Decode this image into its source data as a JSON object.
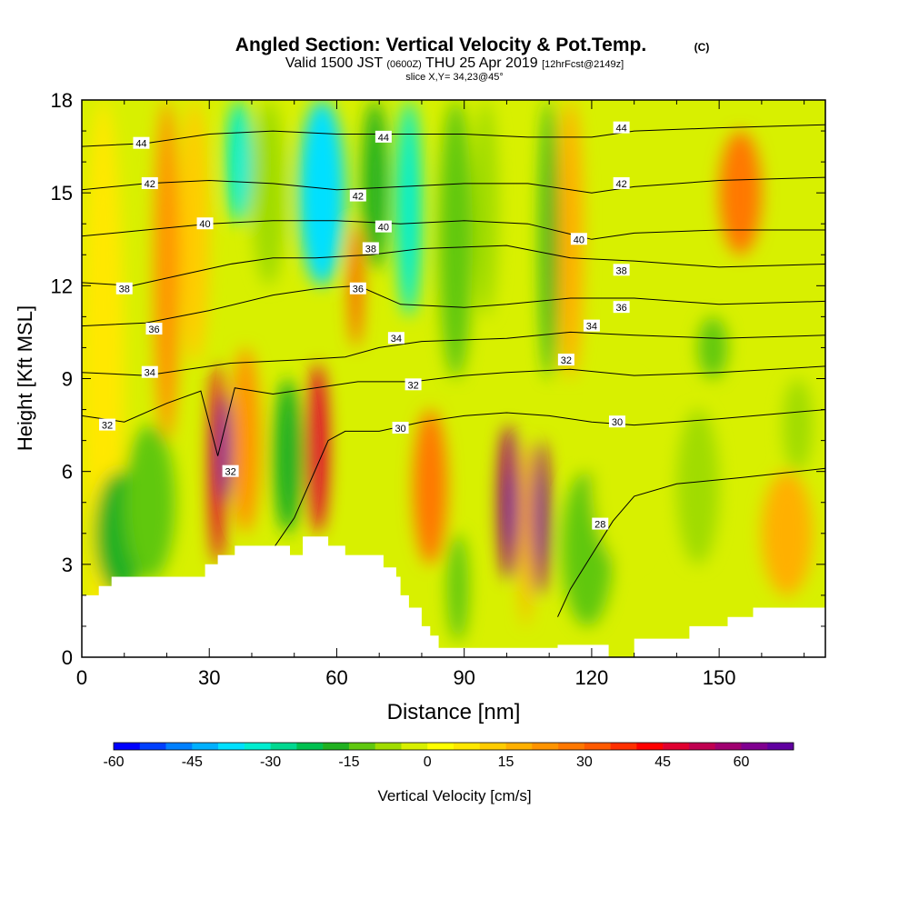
{
  "chart_data": {
    "type": "heatmap",
    "title": {
      "main": "Angled Section: Vertical Velocity & Pot.Temp.",
      "main_suffix": "(C)",
      "line2_a": "Valid 1500 JST",
      "line2_b": "(0600Z)",
      "line2_c": "THU 25 Apr 2019",
      "line2_d": "[12hrFcst@2149z]",
      "line3": "slice X,Y= 34,23@45°"
    },
    "xlabel": "Distance [nm]",
    "ylabel": "Height [Kft MSL]",
    "xlim": [
      0,
      175
    ],
    "ylim": [
      0,
      18
    ],
    "x_ticks": [
      0,
      30,
      60,
      90,
      120,
      150
    ],
    "y_ticks": [
      0,
      3,
      6,
      9,
      12,
      15,
      18
    ],
    "x_tick_labels": [
      "0",
      "30",
      "60",
      "90",
      "120",
      "150"
    ],
    "y_tick_labels": [
      "0",
      "3",
      "6",
      "9",
      "12",
      "15",
      "18"
    ],
    "colorbar": {
      "label": "Vertical Velocity [cm/s]",
      "min": -60,
      "max": 70,
      "step": 5,
      "tick_values": [
        -60,
        -45,
        -30,
        -15,
        0,
        15,
        30,
        45,
        60
      ],
      "tick_labels": [
        "-60",
        "-45",
        "-30",
        "-15",
        "0",
        "15",
        "30",
        "45",
        "60"
      ],
      "colors": [
        "#0000ff",
        "#0040ff",
        "#0080ff",
        "#00b0ff",
        "#00e0ff",
        "#00eed0",
        "#00d890",
        "#00c050",
        "#20b020",
        "#60c810",
        "#a0dc00",
        "#d8f000",
        "#ffff00",
        "#ffe800",
        "#ffcc00",
        "#ffb000",
        "#ff9400",
        "#ff7800",
        "#ff5a00",
        "#ff3000",
        "#ff0000",
        "#e00030",
        "#c00050",
        "#a00070",
        "#800090",
        "#6000a0"
      ]
    },
    "velocity_cells": [
      {
        "x0": 0,
        "x1": 10,
        "y0": 0,
        "y1": 18,
        "v": 5
      },
      {
        "x0": 3,
        "x1": 15,
        "y0": 2,
        "y1": 6,
        "v": -20
      },
      {
        "x0": 10,
        "x1": 22,
        "y0": 2.5,
        "y1": 7.5,
        "v": -15
      },
      {
        "x0": 17,
        "x1": 23,
        "y0": 7,
        "y1": 18,
        "v": 20
      },
      {
        "x0": 23,
        "x1": 30,
        "y0": 9.5,
        "y1": 18,
        "v": 10
      },
      {
        "x0": 30,
        "x1": 34,
        "y0": 3,
        "y1": 9.5,
        "v": 45
      },
      {
        "x0": 32,
        "x1": 35,
        "y0": 5,
        "y1": 8.5,
        "v": 65
      },
      {
        "x0": 35,
        "x1": 42,
        "y0": 4,
        "y1": 10,
        "v": 20
      },
      {
        "x0": 34,
        "x1": 40,
        "y0": 14,
        "y1": 18,
        "v": -35
      },
      {
        "x0": 45,
        "x1": 52,
        "y0": 4,
        "y1": 9,
        "v": -20
      },
      {
        "x0": 40,
        "x1": 48,
        "y0": 12,
        "y1": 18,
        "v": -10
      },
      {
        "x0": 53,
        "x1": 58,
        "y0": 4,
        "y1": 9.5,
        "v": 45
      },
      {
        "x0": 51,
        "x1": 62,
        "y0": 12,
        "y1": 18,
        "v": -40
      },
      {
        "x0": 63,
        "x1": 66,
        "y0": 10,
        "y1": 14,
        "v": 30
      },
      {
        "x0": 66,
        "x1": 72,
        "y0": 12.5,
        "y1": 18,
        "v": -20
      },
      {
        "x0": 74,
        "x1": 80,
        "y0": 11,
        "y1": 18,
        "v": -35
      },
      {
        "x0": 78,
        "x1": 86,
        "y0": 3,
        "y1": 8,
        "v": 25
      },
      {
        "x0": 86,
        "x1": 91,
        "y0": 0.5,
        "y1": 4,
        "v": -15
      },
      {
        "x0": 84,
        "x1": 92,
        "y0": 9,
        "y1": 18,
        "v": -15
      },
      {
        "x0": 92,
        "x1": 98,
        "y0": 11,
        "y1": 18,
        "v": -10
      },
      {
        "x0": 98,
        "x1": 103,
        "y0": 2.5,
        "y1": 7.5,
        "v": 55
      },
      {
        "x0": 100,
        "x1": 102,
        "y0": 3.5,
        "y1": 6,
        "v": 70
      },
      {
        "x0": 103,
        "x1": 106,
        "y0": 1,
        "y1": 7,
        "v": 15
      },
      {
        "x0": 106,
        "x1": 110,
        "y0": 2,
        "y1": 7,
        "v": 55
      },
      {
        "x0": 107,
        "x1": 109,
        "y0": 3,
        "y1": 6,
        "v": 65
      },
      {
        "x0": 108,
        "x1": 112,
        "y0": 9,
        "y1": 18,
        "v": -20
      },
      {
        "x0": 113,
        "x1": 125,
        "y0": 1,
        "y1": 6,
        "v": -15
      },
      {
        "x0": 112,
        "x1": 118,
        "y0": 9,
        "y1": 18,
        "v": 15
      },
      {
        "x0": 120,
        "x1": 135,
        "y0": 3,
        "y1": 9,
        "v": -5
      },
      {
        "x0": 140,
        "x1": 150,
        "y0": 3,
        "y1": 8,
        "v": -10
      },
      {
        "x0": 145,
        "x1": 152,
        "y0": 9,
        "y1": 11,
        "v": -15
      },
      {
        "x0": 150,
        "x1": 160,
        "y0": 13,
        "y1": 17,
        "v": 25
      },
      {
        "x0": 160,
        "x1": 172,
        "y0": 2,
        "y1": 6,
        "v": 15
      },
      {
        "x0": 165,
        "x1": 172,
        "y0": 6,
        "y1": 9,
        "v": -10
      }
    ],
    "terrain": [
      [
        0,
        2
      ],
      [
        4,
        2
      ],
      [
        4,
        2.3
      ],
      [
        7,
        2.3
      ],
      [
        7,
        2.6
      ],
      [
        29,
        2.6
      ],
      [
        29,
        3
      ],
      [
        32,
        3
      ],
      [
        32,
        3.3
      ],
      [
        36,
        3.3
      ],
      [
        36,
        3.6
      ],
      [
        49,
        3.6
      ],
      [
        49,
        3.3
      ],
      [
        52,
        3.3
      ],
      [
        52,
        3.9
      ],
      [
        58,
        3.9
      ],
      [
        58,
        3.6
      ],
      [
        62,
        3.6
      ],
      [
        62,
        3.3
      ],
      [
        71,
        3.3
      ],
      [
        71,
        2.9
      ],
      [
        74,
        2.9
      ],
      [
        74,
        2.6
      ],
      [
        75,
        2.6
      ],
      [
        75,
        2
      ],
      [
        77,
        2
      ],
      [
        77,
        1.6
      ],
      [
        80,
        1.6
      ],
      [
        80,
        1
      ],
      [
        82,
        1
      ],
      [
        82,
        0.7
      ],
      [
        84,
        0.7
      ],
      [
        84,
        0.3
      ],
      [
        112,
        0.3
      ],
      [
        112,
        0.4
      ],
      [
        124,
        0.4
      ],
      [
        124,
        0
      ],
      [
        130,
        0
      ],
      [
        130,
        0.6
      ],
      [
        143,
        0.6
      ],
      [
        143,
        1
      ],
      [
        152,
        1
      ],
      [
        152,
        1.3
      ],
      [
        158,
        1.3
      ],
      [
        158,
        1.6
      ],
      [
        163,
        1.6
      ],
      [
        163,
        1.6
      ],
      [
        175,
        1.6
      ]
    ],
    "isentropes": [
      {
        "label": "28",
        "points": [
          [
            112,
            1.3
          ],
          [
            115,
            2.2
          ],
          [
            120,
            3.3
          ],
          [
            125,
            4.4
          ],
          [
            130,
            5.2
          ],
          [
            140,
            5.6
          ],
          [
            155,
            5.8
          ],
          [
            175,
            6.1
          ]
        ],
        "label_at": [
          122,
          4.3
        ]
      },
      {
        "label": "30",
        "points": [
          [
            40,
            2.5
          ],
          [
            50,
            4.5
          ],
          [
            58,
            7
          ],
          [
            62,
            7.3
          ],
          [
            70,
            7.3
          ],
          [
            80,
            7.6
          ],
          [
            90,
            7.8
          ],
          [
            100,
            7.9
          ],
          [
            110,
            7.8
          ],
          [
            120,
            7.6
          ],
          [
            130,
            7.5
          ],
          [
            150,
            7.7
          ],
          [
            175,
            8
          ]
        ],
        "label_at": [
          75,
          7.4
        ]
      },
      {
        "label": "32",
        "points": [
          [
            0,
            7.8
          ],
          [
            10,
            7.6
          ],
          [
            20,
            8.2
          ],
          [
            28,
            8.6
          ],
          [
            32,
            6.5
          ],
          [
            36,
            8.7
          ],
          [
            45,
            8.5
          ],
          [
            55,
            8.7
          ],
          [
            65,
            8.9
          ],
          [
            78,
            8.9
          ],
          [
            90,
            9.1
          ],
          [
            100,
            9.2
          ],
          [
            115,
            9.3
          ],
          [
            130,
            9.1
          ],
          [
            150,
            9.2
          ],
          [
            175,
            9.4
          ]
        ],
        "label_at": [
          6,
          7.5
        ]
      },
      {
        "label": "34",
        "points": [
          [
            0,
            9.2
          ],
          [
            15,
            9.1
          ],
          [
            25,
            9.3
          ],
          [
            35,
            9.5
          ],
          [
            50,
            9.6
          ],
          [
            62,
            9.7
          ],
          [
            70,
            10
          ],
          [
            80,
            10.2
          ],
          [
            100,
            10.3
          ],
          [
            115,
            10.5
          ],
          [
            130,
            10.4
          ],
          [
            150,
            10.3
          ],
          [
            175,
            10.4
          ]
        ],
        "label_at": [
          16,
          9.2
        ]
      },
      {
        "label": "36",
        "points": [
          [
            0,
            10.7
          ],
          [
            15,
            10.8
          ],
          [
            30,
            11.2
          ],
          [
            45,
            11.7
          ],
          [
            55,
            11.9
          ],
          [
            65,
            12
          ],
          [
            75,
            11.4
          ],
          [
            90,
            11.3
          ],
          [
            100,
            11.4
          ],
          [
            115,
            11.6
          ],
          [
            130,
            11.6
          ],
          [
            150,
            11.4
          ],
          [
            175,
            11.5
          ]
        ],
        "label_at": [
          17,
          10.6
        ]
      },
      {
        "label": "38",
        "points": [
          [
            0,
            12.1
          ],
          [
            12,
            12
          ],
          [
            25,
            12.4
          ],
          [
            35,
            12.7
          ],
          [
            45,
            12.9
          ],
          [
            55,
            12.9
          ],
          [
            68,
            13
          ],
          [
            80,
            13.2
          ],
          [
            100,
            13.3
          ],
          [
            115,
            12.9
          ],
          [
            130,
            12.8
          ],
          [
            150,
            12.6
          ],
          [
            175,
            12.7
          ]
        ],
        "label_at": [
          10,
          11.9
        ]
      },
      {
        "label": "40",
        "points": [
          [
            0,
            13.6
          ],
          [
            15,
            13.8
          ],
          [
            30,
            14
          ],
          [
            45,
            14.1
          ],
          [
            60,
            14.1
          ],
          [
            75,
            14
          ],
          [
            90,
            14.1
          ],
          [
            105,
            14
          ],
          [
            120,
            13.5
          ],
          [
            130,
            13.7
          ],
          [
            150,
            13.8
          ],
          [
            175,
            13.8
          ]
        ],
        "label_at": [
          29,
          14.0
        ]
      },
      {
        "label": "42",
        "points": [
          [
            0,
            15.1
          ],
          [
            15,
            15.3
          ],
          [
            30,
            15.4
          ],
          [
            45,
            15.3
          ],
          [
            60,
            15.1
          ],
          [
            75,
            15.2
          ],
          [
            90,
            15.3
          ],
          [
            105,
            15.3
          ],
          [
            120,
            15
          ],
          [
            130,
            15.2
          ],
          [
            150,
            15.4
          ],
          [
            175,
            15.5
          ]
        ],
        "label_at": [
          16,
          15.3
        ]
      },
      {
        "label": "44",
        "points": [
          [
            0,
            16.5
          ],
          [
            15,
            16.6
          ],
          [
            30,
            16.9
          ],
          [
            45,
            17
          ],
          [
            60,
            16.9
          ],
          [
            75,
            16.9
          ],
          [
            90,
            16.9
          ],
          [
            105,
            16.8
          ],
          [
            120,
            16.8
          ],
          [
            130,
            17
          ],
          [
            150,
            17.1
          ],
          [
            175,
            17.2
          ]
        ],
        "label_at": [
          14,
          16.6
        ]
      }
    ],
    "isentrope_extra_labels": [
      {
        "label": "44",
        "at": [
          71,
          16.8
        ]
      },
      {
        "label": "44",
        "at": [
          127,
          17.1
        ]
      },
      {
        "label": "42",
        "at": [
          65,
          14.9
        ]
      },
      {
        "label": "42",
        "at": [
          127,
          15.3
        ]
      },
      {
        "label": "40",
        "at": [
          71,
          13.9
        ]
      },
      {
        "label": "40",
        "at": [
          117,
          13.5
        ]
      },
      {
        "label": "38",
        "at": [
          68,
          13.2
        ]
      },
      {
        "label": "38",
        "at": [
          127,
          12.5
        ]
      },
      {
        "label": "36",
        "at": [
          65,
          11.9
        ]
      },
      {
        "label": "36",
        "at": [
          127,
          11.3
        ]
      },
      {
        "label": "34",
        "at": [
          74,
          10.3
        ]
      },
      {
        "label": "34",
        "at": [
          120,
          10.7
        ]
      },
      {
        "label": "32",
        "at": [
          78,
          8.8
        ]
      },
      {
        "label": "32",
        "at": [
          114,
          9.6
        ]
      },
      {
        "label": "32",
        "at": [
          35,
          6.0
        ]
      },
      {
        "label": "30",
        "at": [
          126,
          7.6
        ]
      }
    ]
  }
}
